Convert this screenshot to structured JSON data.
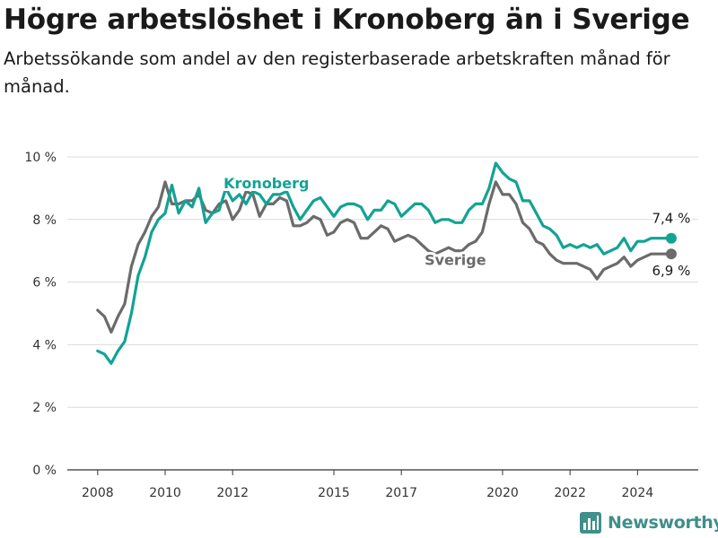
{
  "title": "Högre arbetslöshet i Kronoberg än i Sverige",
  "subtitle": "Arbetssökande som andel av den registerbaserade arbetskraften månad för månad.",
  "brand": {
    "name": "Newsworthy",
    "icon": "bar-chart-logo-icon",
    "color": "#3f8f8a"
  },
  "colors": {
    "kronoberg": "#12a394",
    "sverige": "#6b6b6b",
    "grid": "#dcdcdc",
    "axis": "#333333"
  },
  "chart_data": {
    "type": "line",
    "title": "Högre arbetslöshet i Kronoberg än i Sverige",
    "ylim": [
      0,
      10
    ],
    "xlim": [
      2007.1,
      2025.8
    ],
    "y_ticks": [
      0,
      2,
      4,
      6,
      8,
      10
    ],
    "y_tick_labels": [
      "0 %",
      "2 %",
      "4 %",
      "6 %",
      "8 %",
      "10 %"
    ],
    "x_ticks": [
      2008,
      2010,
      2012,
      2015,
      2017,
      2020,
      2022,
      2024
    ],
    "x_tick_labels": [
      "2008",
      "2010",
      "2012",
      "2015",
      "2017",
      "2020",
      "2022",
      "2024"
    ],
    "grid": "horizontal",
    "series": [
      {
        "name": "Kronoberg",
        "color": "#12a394",
        "end_label": "7,4 %",
        "x": [
          2008.0,
          2008.2,
          2008.4,
          2008.6,
          2008.8,
          2009.0,
          2009.2,
          2009.4,
          2009.6,
          2009.8,
          2010.0,
          2010.2,
          2010.4,
          2010.6,
          2010.8,
          2011.0,
          2011.2,
          2011.4,
          2011.6,
          2011.8,
          2012.0,
          2012.2,
          2012.4,
          2012.6,
          2012.8,
          2013.0,
          2013.2,
          2013.4,
          2013.6,
          2013.8,
          2014.0,
          2014.2,
          2014.4,
          2014.6,
          2014.8,
          2015.0,
          2015.2,
          2015.4,
          2015.6,
          2015.8,
          2016.0,
          2016.2,
          2016.4,
          2016.6,
          2016.8,
          2017.0,
          2017.2,
          2017.4,
          2017.6,
          2017.8,
          2018.0,
          2018.2,
          2018.4,
          2018.6,
          2018.8,
          2019.0,
          2019.2,
          2019.4,
          2019.6,
          2019.8,
          2020.0,
          2020.2,
          2020.4,
          2020.6,
          2020.8,
          2021.0,
          2021.2,
          2021.4,
          2021.6,
          2021.8,
          2022.0,
          2022.2,
          2022.4,
          2022.6,
          2022.8,
          2023.0,
          2023.2,
          2023.4,
          2023.6,
          2023.8,
          2024.0,
          2024.2,
          2024.4,
          2024.6,
          2024.8,
          2025.0
        ],
        "y": [
          3.8,
          3.7,
          3.4,
          3.8,
          4.1,
          5.0,
          6.2,
          6.8,
          7.6,
          8.0,
          8.2,
          9.1,
          8.2,
          8.6,
          8.4,
          9.0,
          7.9,
          8.2,
          8.3,
          9.0,
          8.6,
          8.8,
          8.5,
          8.9,
          8.8,
          8.5,
          8.8,
          8.8,
          8.9,
          8.4,
          8.0,
          8.3,
          8.6,
          8.7,
          8.4,
          8.1,
          8.4,
          8.5,
          8.5,
          8.4,
          8.0,
          8.3,
          8.3,
          8.6,
          8.5,
          8.1,
          8.3,
          8.5,
          8.5,
          8.3,
          7.9,
          8.0,
          8.0,
          7.9,
          7.9,
          8.3,
          8.5,
          8.5,
          9.0,
          9.8,
          9.5,
          9.3,
          9.2,
          8.6,
          8.6,
          8.2,
          7.8,
          7.7,
          7.5,
          7.1,
          7.2,
          7.1,
          7.2,
          7.1,
          7.2,
          6.9,
          7.0,
          7.1,
          7.4,
          7.0,
          7.3,
          7.3,
          7.4,
          7.4,
          7.4,
          7.4
        ]
      },
      {
        "name": "Sverige",
        "color": "#6b6b6b",
        "end_label": "6,9 %",
        "x": [
          2008.0,
          2008.2,
          2008.4,
          2008.6,
          2008.8,
          2009.0,
          2009.2,
          2009.4,
          2009.6,
          2009.8,
          2010.0,
          2010.2,
          2010.4,
          2010.6,
          2010.8,
          2011.0,
          2011.2,
          2011.4,
          2011.6,
          2011.8,
          2012.0,
          2012.2,
          2012.4,
          2012.6,
          2012.8,
          2013.0,
          2013.2,
          2013.4,
          2013.6,
          2013.8,
          2014.0,
          2014.2,
          2014.4,
          2014.6,
          2014.8,
          2015.0,
          2015.2,
          2015.4,
          2015.6,
          2015.8,
          2016.0,
          2016.2,
          2016.4,
          2016.6,
          2016.8,
          2017.0,
          2017.2,
          2017.4,
          2017.6,
          2017.8,
          2018.0,
          2018.2,
          2018.4,
          2018.6,
          2018.8,
          2019.0,
          2019.2,
          2019.4,
          2019.6,
          2019.8,
          2020.0,
          2020.2,
          2020.4,
          2020.6,
          2020.8,
          2021.0,
          2021.2,
          2021.4,
          2021.6,
          2021.8,
          2022.0,
          2022.2,
          2022.4,
          2022.6,
          2022.8,
          2023.0,
          2023.2,
          2023.4,
          2023.6,
          2023.8,
          2024.0,
          2024.2,
          2024.4,
          2024.6,
          2024.8,
          2025.0
        ],
        "y": [
          5.1,
          4.9,
          4.4,
          4.9,
          5.3,
          6.5,
          7.2,
          7.6,
          8.1,
          8.4,
          9.2,
          8.5,
          8.5,
          8.6,
          8.6,
          8.8,
          8.3,
          8.2,
          8.5,
          8.6,
          8.0,
          8.3,
          8.9,
          8.8,
          8.1,
          8.5,
          8.5,
          8.7,
          8.6,
          7.8,
          7.8,
          7.9,
          8.1,
          8.0,
          7.5,
          7.6,
          7.9,
          8.0,
          7.9,
          7.4,
          7.4,
          7.6,
          7.8,
          7.7,
          7.3,
          7.4,
          7.5,
          7.4,
          7.2,
          7.0,
          6.9,
          7.0,
          7.1,
          7.0,
          7.0,
          7.2,
          7.3,
          7.6,
          8.5,
          9.2,
          8.8,
          8.8,
          8.5,
          7.9,
          7.7,
          7.3,
          7.2,
          6.9,
          6.7,
          6.6,
          6.6,
          6.6,
          6.5,
          6.4,
          6.1,
          6.4,
          6.5,
          6.6,
          6.8,
          6.5,
          6.7,
          6.8,
          6.9,
          6.9,
          6.9,
          6.9
        ]
      }
    ],
    "annotations": [
      {
        "text": "Kronoberg",
        "series": "Kronoberg",
        "x": 2013.0,
        "y": 9.0
      },
      {
        "text": "Sverige",
        "series": "Sverige",
        "x": 2018.6,
        "y": 6.55
      }
    ]
  }
}
